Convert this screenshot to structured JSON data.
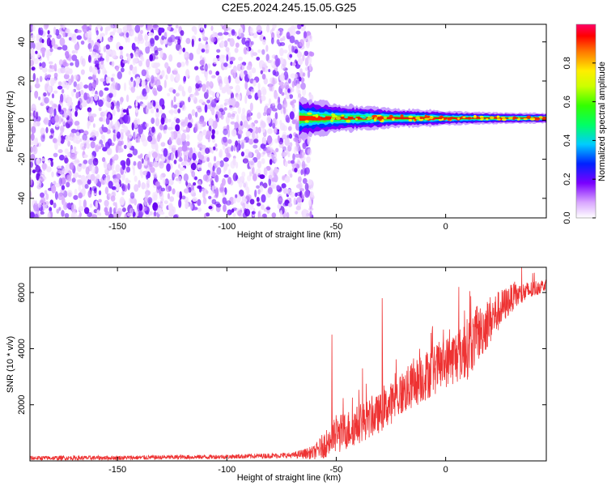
{
  "figure": {
    "title": "C2E5.2024.245.15.05.G25"
  },
  "chart_data": [
    {
      "type": "heatmap",
      "xlabel": "Height of straight line (km)",
      "ylabel": "Frequency (Hz)",
      "xlim": [
        -190,
        46
      ],
      "ylim": [
        -50,
        49
      ],
      "x_ticks": [
        -150,
        -100,
        -50,
        0
      ],
      "y_ticks": [
        -40,
        -20,
        0,
        20,
        40
      ],
      "grid": false,
      "colorbar": {
        "label": "Normalized spectral amplitude",
        "range": [
          0,
          1
        ],
        "ticks": [
          0.0,
          0.2,
          0.4,
          0.6,
          0.8
        ],
        "colormap": [
          "#ffffff",
          "#e6bfff",
          "#b36bff",
          "#6a00ff",
          "#0033ff",
          "#00ffff",
          "#00ff33",
          "#aaff00",
          "#ffff00",
          "#ff8800",
          "#ff0000",
          "#ff0066"
        ]
      },
      "regions": [
        {
          "description_x_range": [
            -190,
            -67
          ],
          "frequency_range": [
            -50,
            49
          ],
          "amplitude_range": [
            0.02,
            0.15
          ],
          "pattern": "scattered noise"
        },
        {
          "description_x_range": [
            -67,
            46
          ],
          "frequency_center": 1,
          "amplitude_range": [
            0.3,
            1.0
          ],
          "pattern": "narrow line"
        }
      ],
      "line_profile": {
        "x": [
          -67,
          -60,
          -50,
          -40,
          -30,
          -20,
          -10,
          0,
          10,
          20,
          30,
          46
        ],
        "halfwidth_hz": [
          6,
          5,
          4,
          3.5,
          3,
          2.5,
          2.5,
          2,
          1.8,
          1.6,
          1.5,
          1.4
        ],
        "peak_amplitude": [
          0.35,
          0.5,
          0.6,
          0.7,
          0.85,
          0.85,
          0.9,
          0.9,
          0.95,
          0.95,
          0.95,
          0.95
        ]
      }
    },
    {
      "type": "line",
      "xlabel": "Height of straight line (km)",
      "ylabel": "SNR (10 * v/v)",
      "xlim": [
        -190,
        46
      ],
      "ylim": [
        0,
        6900
      ],
      "x_ticks": [
        -150,
        -100,
        -50,
        0
      ],
      "y_ticks": [
        2000,
        4000,
        6000
      ],
      "grid": false,
      "color": "#ee3333",
      "envelope": {
        "x": [
          -190,
          -150,
          -100,
          -70,
          -60,
          -55,
          -50,
          -45,
          -40,
          -30,
          -20,
          -10,
          0,
          10,
          20,
          30,
          46
        ],
        "base": [
          100,
          110,
          150,
          200,
          300,
          600,
          900,
          1100,
          1300,
          1700,
          2400,
          3000,
          3500,
          4000,
          5000,
          5800,
          6300
        ],
        "amp": [
          80,
          80,
          80,
          100,
          250,
          500,
          700,
          700,
          700,
          700,
          800,
          900,
          900,
          1100,
          900,
          500,
          200
        ]
      },
      "spikes": [
        {
          "x": -52,
          "y": 4500
        },
        {
          "x": -29,
          "y": 5800
        },
        {
          "x": -38,
          "y": 3300
        },
        {
          "x": -6,
          "y": 4800
        },
        {
          "x": 6,
          "y": 6200
        },
        {
          "x": 11,
          "y": 6050
        }
      ]
    }
  ]
}
